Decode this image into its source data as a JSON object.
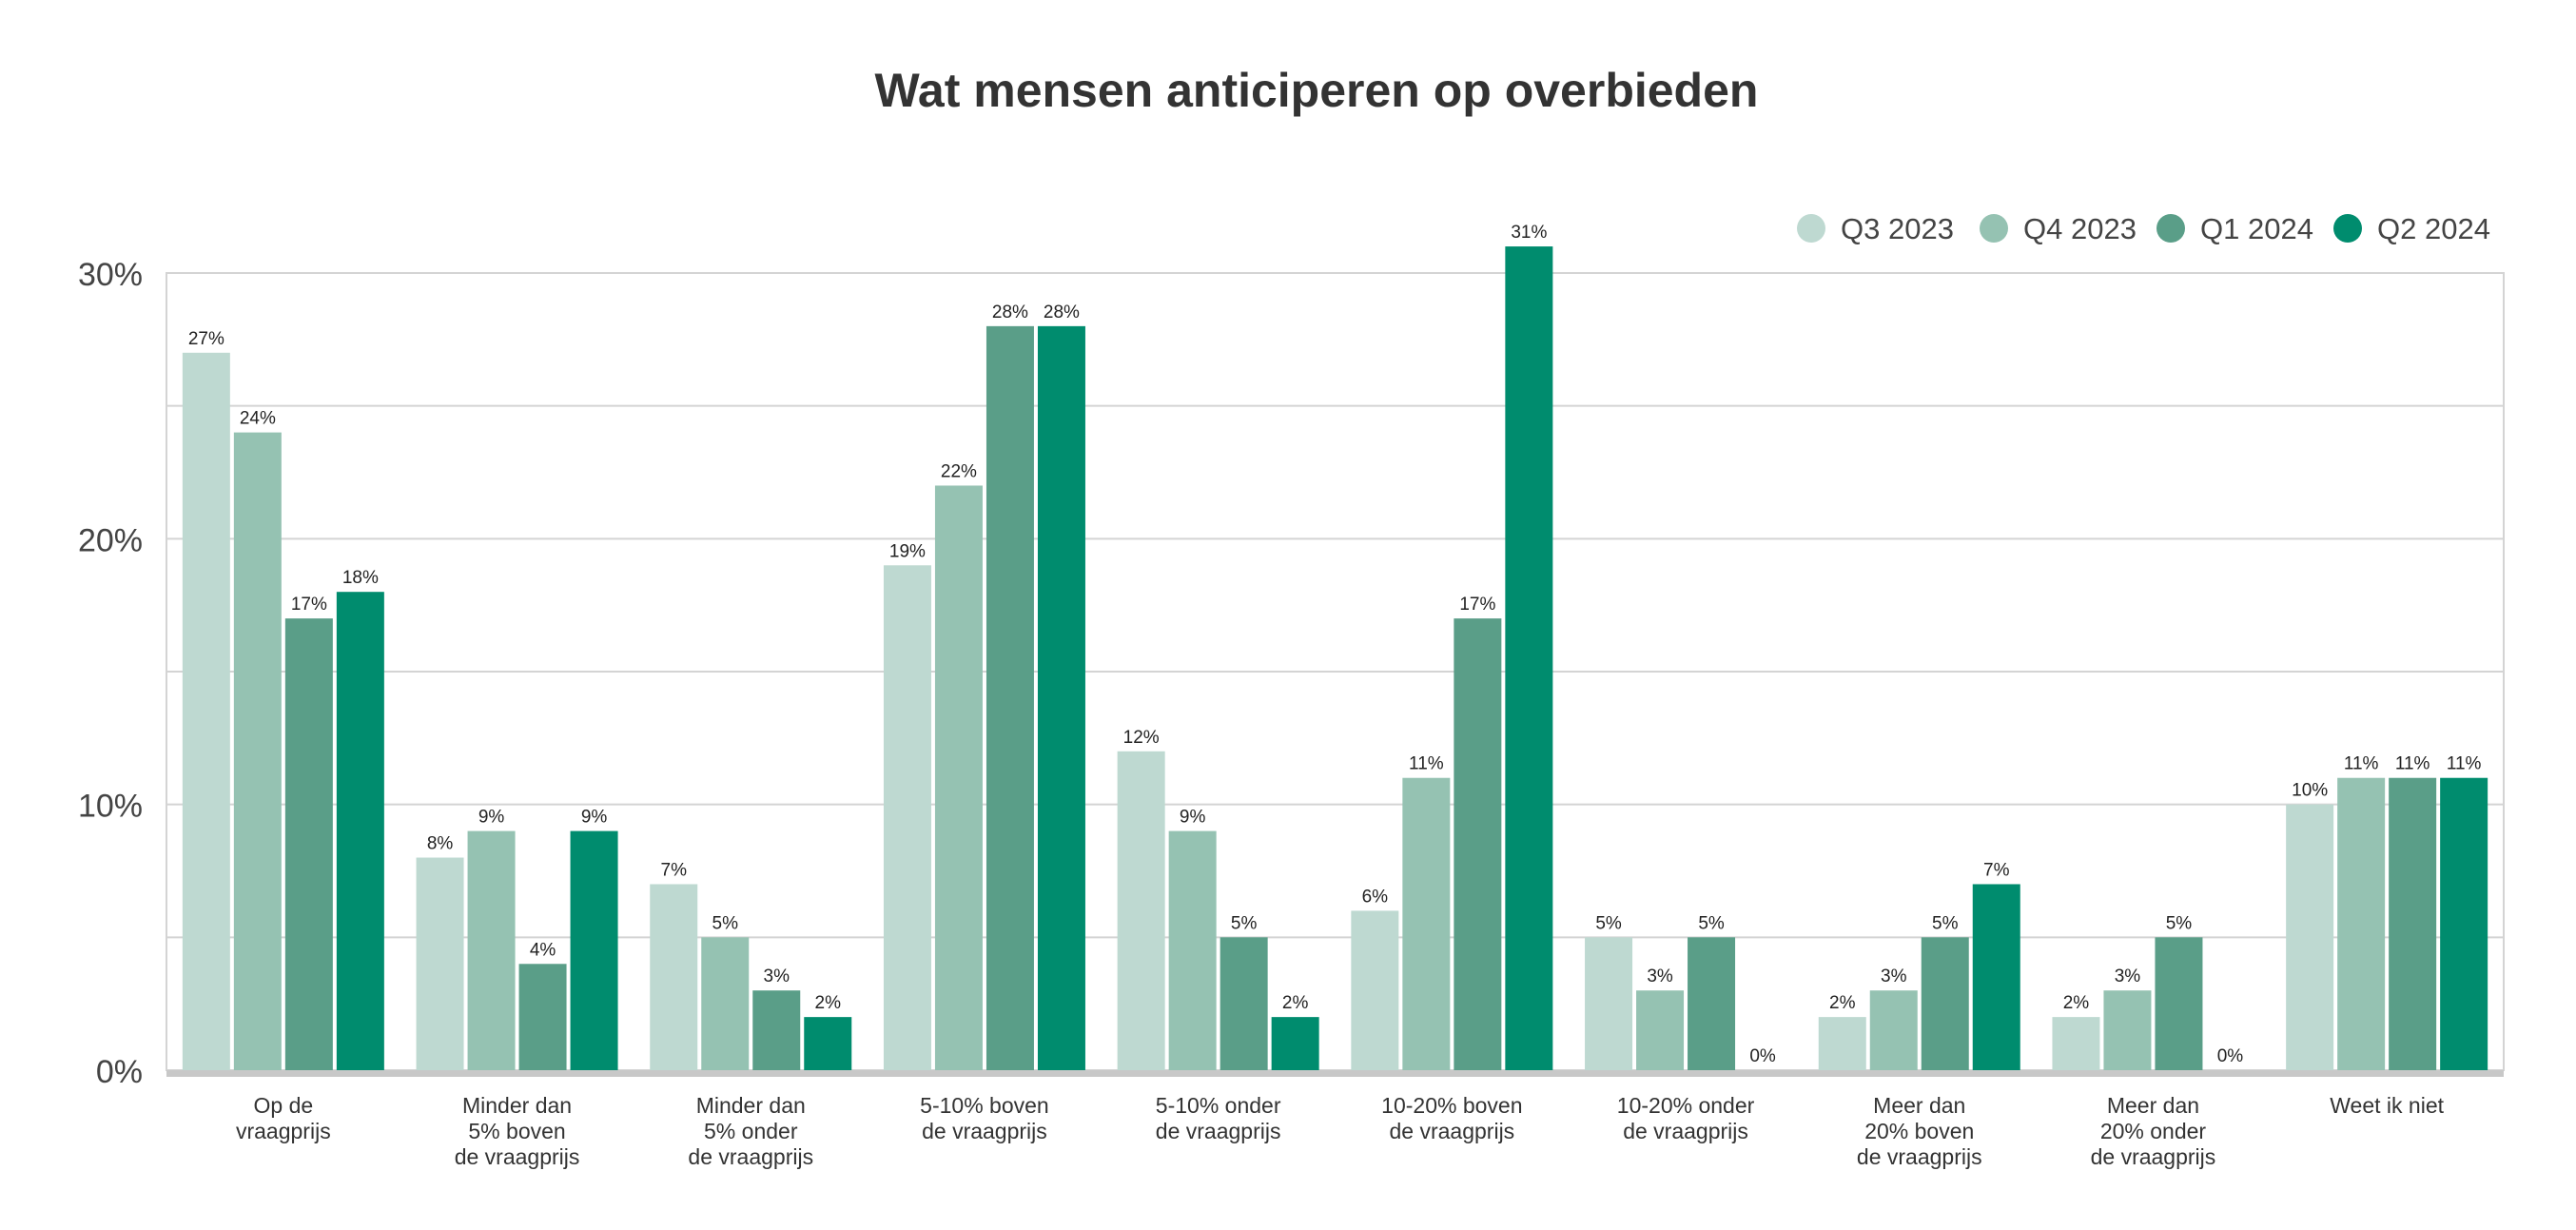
{
  "chart_data": {
    "type": "bar",
    "title": "Wat mensen anticiperen op overbieden",
    "xlabel": "",
    "ylabel": "",
    "ylim": [
      0,
      30
    ],
    "yticks": [
      0,
      10,
      20,
      30
    ],
    "ytick_labels": [
      "0%",
      "10%",
      "20%",
      "30%"
    ],
    "grid": true,
    "legend_position": "top-right",
    "value_suffix": "%",
    "categories": [
      [
        "Op de",
        "vraagprijs"
      ],
      [
        "Minder dan",
        "5% boven",
        "de vraagprijs"
      ],
      [
        "Minder dan",
        "5% onder",
        "de vraagprijs"
      ],
      [
        "5-10% boven",
        "de vraagprijs"
      ],
      [
        "5-10% onder",
        "de vraagprijs"
      ],
      [
        "10-20% boven",
        "de vraagprijs"
      ],
      [
        "10-20% onder",
        "de vraagprijs"
      ],
      [
        "Meer dan",
        "20% boven",
        "de vraagprijs"
      ],
      [
        "Meer dan",
        "20% onder",
        "de vraagprijs"
      ],
      [
        "Weet ik niet"
      ]
    ],
    "series": [
      {
        "name": "Q3 2023",
        "color": "#bed9d1",
        "values": [
          27,
          8,
          7,
          19,
          12,
          6,
          5,
          2,
          2,
          10
        ]
      },
      {
        "name": "Q4 2023",
        "color": "#95c2b2",
        "values": [
          24,
          9,
          5,
          22,
          9,
          11,
          3,
          3,
          3,
          11
        ]
      },
      {
        "name": "Q1 2024",
        "color": "#5a9e88",
        "values": [
          17,
          4,
          3,
          28,
          5,
          17,
          5,
          5,
          5,
          11
        ]
      },
      {
        "name": "Q2 2024",
        "color": "#008c6e",
        "values": [
          18,
          9,
          2,
          28,
          2,
          31,
          0,
          7,
          0,
          11
        ]
      }
    ]
  }
}
